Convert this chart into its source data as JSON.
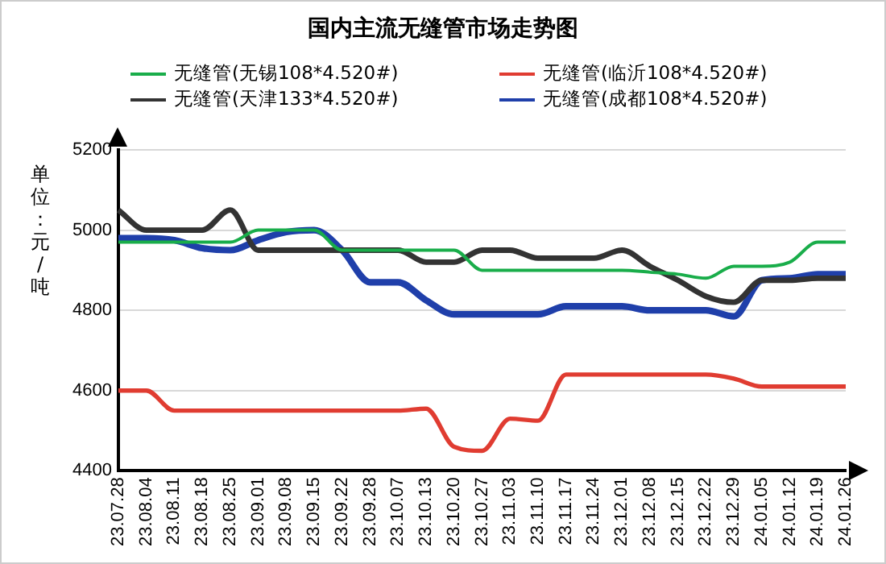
{
  "chart_data": {
    "type": "line",
    "title": "国内主流无缝管市场走势图",
    "ylabel": "单位：元/吨",
    "categories": [
      "23.07.28",
      "23.08.04",
      "23.08.11",
      "23.08.18",
      "23.08.25",
      "23.09.01",
      "23.09.08",
      "23.09.15",
      "23.09.22",
      "23.09.28",
      "23.10.07",
      "23.10.13",
      "23.10.20",
      "23.10.27",
      "23.11.03",
      "23.11.10",
      "23.11.17",
      "23.11.24",
      "23.12.01",
      "23.12.08",
      "23.12.15",
      "23.12.22",
      "23.12.29",
      "24.01.05",
      "24.01.12",
      "24.01.19",
      "24.01.26"
    ],
    "series": [
      {
        "name": "无缝管(无锡108*4.520#)",
        "color": "#19ad4a",
        "values": [
          4970,
          4970,
          4970,
          4970,
          4970,
          5000,
          5000,
          5000,
          4950,
          4950,
          4950,
          4950,
          4950,
          4900,
          4900,
          4900,
          4900,
          4900,
          4900,
          4895,
          4890,
          4880,
          4910,
          4910,
          4920,
          4970,
          4970
        ]
      },
      {
        "name": "无缝管(临沂108*4.520#)",
        "color": "#e03c31",
        "values": [
          4600,
          4600,
          4550,
          4550,
          4550,
          4550,
          4550,
          4550,
          4550,
          4550,
          4550,
          4555,
          4460,
          4450,
          4530,
          4525,
          4640,
          4640,
          4640,
          4640,
          4640,
          4640,
          4630,
          4610,
          4610,
          4610,
          4610
        ]
      },
      {
        "name": "无缝管(天津133*4.520#)",
        "color": "#333333",
        "values": [
          5050,
          5000,
          5000,
          5000,
          5050,
          4950,
          4950,
          4950,
          4950,
          4950,
          4950,
          4920,
          4920,
          4950,
          4950,
          4930,
          4930,
          4930,
          4950,
          4910,
          4875,
          4835,
          4820,
          4875,
          4875,
          4880,
          4880
        ]
      },
      {
        "name": "无缝管(成都108*4.520#)",
        "color": "#1f3faa",
        "values": [
          4980,
          4980,
          4975,
          4955,
          4950,
          4975,
          4995,
          5000,
          4950,
          4870,
          4870,
          4825,
          4790,
          4790,
          4790,
          4790,
          4810,
          4810,
          4810,
          4800,
          4800,
          4800,
          4785,
          4875,
          4880,
          4890,
          4890
        ]
      }
    ],
    "ylim": [
      4400,
      5200
    ],
    "yticks": [
      4400,
      4600,
      4800,
      5000,
      5200
    ],
    "grid": "y",
    "legend": "top",
    "marker": "none",
    "line_style": "solid"
  }
}
